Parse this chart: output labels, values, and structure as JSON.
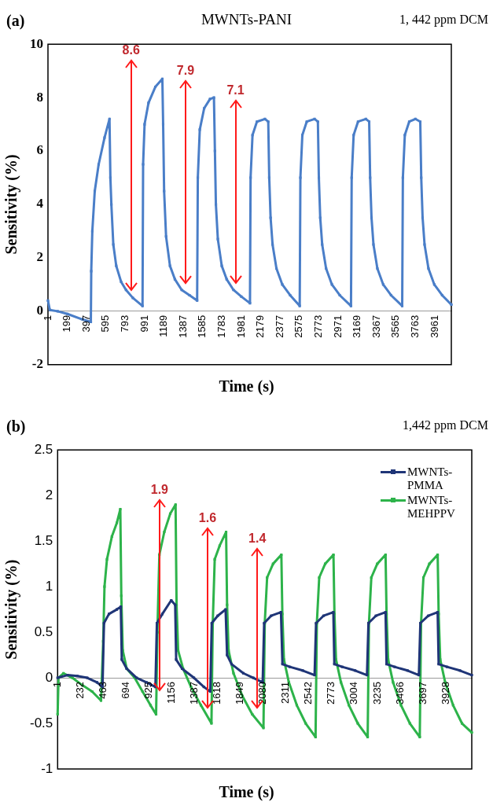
{
  "chart_data": [
    {
      "type": "line",
      "title": "MWNTs-PANI",
      "subtitle": "1, 442 ppm DCM",
      "xlabel": "Time (s)",
      "ylabel": "Sensitivity (%)",
      "xlim": [
        1,
        4130
      ],
      "xticks": [
        1,
        199,
        397,
        595,
        793,
        991,
        1189,
        1387,
        1585,
        1783,
        1981,
        2179,
        2377,
        2575,
        2773,
        2971,
        3169,
        3367,
        3565,
        3763,
        3961
      ],
      "ylim": [
        -2,
        10
      ],
      "yticks": [
        -2,
        0,
        2,
        4,
        6,
        8,
        10
      ],
      "grid": false,
      "legend": false,
      "marker": "square",
      "annotations": [
        "(a)",
        "8.6",
        "7.9",
        "7.1"
      ],
      "series": [
        {
          "color": "#4a7ec8",
          "x": [
            1,
            20,
            100,
            200,
            350,
            440,
            444,
            455,
            480,
            520,
            580,
            631,
            640,
            650,
            670,
            700,
            750,
            800,
            870,
            969,
            975,
            990,
            1030,
            1100,
            1172,
            1180,
            1190,
            1210,
            1250,
            1300,
            1370,
            1450,
            1528,
            1535,
            1555,
            1600,
            1660,
            1700,
            1710,
            1720,
            1740,
            1780,
            1830,
            1900,
            1980,
            2069,
            2075,
            2095,
            2140,
            2222,
            2256,
            2266,
            2280,
            2300,
            2340,
            2400,
            2480,
            2578,
            2585,
            2605,
            2650,
            2730,
            2764,
            2774,
            2788,
            2808,
            2848,
            2908,
            2988,
            3103,
            3110,
            3130,
            3175,
            3255,
            3289,
            3299,
            3313,
            3333,
            3373,
            3433,
            3513,
            3627,
            3634,
            3654,
            3699,
            3762,
            3812,
            3822,
            3836,
            3856,
            3896,
            3956,
            4036,
            4130
          ],
          "values": [
            0.4,
            0.05,
            0,
            -0.1,
            -0.3,
            -0.4,
            1.5,
            3,
            4.5,
            5.5,
            6.5,
            7.2,
            5,
            4,
            2.5,
            1.7,
            1.1,
            0.8,
            0.5,
            0.2,
            5.5,
            7,
            7.8,
            8.4,
            8.7,
            7,
            4.5,
            2.8,
            1.7,
            1.2,
            0.8,
            0.6,
            0.4,
            5,
            6.8,
            7.6,
            7.95,
            8,
            6,
            4,
            2.7,
            1.7,
            1.2,
            0.8,
            0.55,
            0.3,
            5,
            6.6,
            7.1,
            7.2,
            7.1,
            5,
            3.5,
            2.5,
            1.6,
            1,
            0.6,
            0.2,
            5,
            6.6,
            7.1,
            7.2,
            7.1,
            5,
            3.5,
            2.5,
            1.6,
            1,
            0.6,
            0.2,
            5,
            6.6,
            7.1,
            7.2,
            7.1,
            5,
            3.5,
            2.5,
            1.6,
            1,
            0.6,
            0.2,
            5,
            6.6,
            7.1,
            7.2,
            7.1,
            5,
            3.5,
            2.5,
            1.6,
            1,
            0.6,
            0.25
          ]
        }
      ]
    },
    {
      "type": "line",
      "subtitle": "1,442 ppm DCM",
      "xlabel": "Time (s)",
      "ylabel": "Sensitivity (%)",
      "xlim": [
        1,
        4190
      ],
      "xticks": [
        1,
        232,
        463,
        694,
        925,
        1156,
        1387,
        1618,
        1849,
        2080,
        2311,
        2542,
        2773,
        3004,
        3235,
        3466,
        3697,
        3928
      ],
      "ylim": [
        -1,
        2.5
      ],
      "yticks": [
        -1,
        -0.5,
        0,
        0.5,
        1,
        1.5,
        2,
        2.5
      ],
      "grid": false,
      "legend": "top right",
      "marker": "square",
      "annotations": [
        "(b)",
        "1.9",
        "1.6",
        "1.4"
      ],
      "series": [
        {
          "name": "MWNTs-PMMA",
          "color": "#1f3577",
          "x": [
            1,
            100,
            200,
            300,
            400,
            455,
            470,
            520,
            600,
            640,
            650,
            700,
            800,
            900,
            990,
            1005,
            1060,
            1150,
            1190,
            1200,
            1260,
            1380,
            1480,
            1545,
            1560,
            1620,
            1700,
            1715,
            1760,
            1880,
            1980,
            2075,
            2090,
            2160,
            2260,
            2275,
            2350,
            2480,
            2600,
            2615,
            2690,
            2790,
            2800,
            2880,
            3010,
            3130,
            3145,
            3220,
            3318,
            3328,
            3410,
            3540,
            3655,
            3670,
            3750,
            3845,
            3855,
            3940,
            4070,
            4190
          ],
          "values": [
            0,
            0.03,
            0.02,
            0,
            -0.05,
            -0.1,
            0.6,
            0.7,
            0.75,
            0.78,
            0.2,
            0.1,
            0,
            -0.05,
            -0.1,
            0.6,
            0.7,
            0.85,
            0.8,
            0.2,
            0.1,
            0,
            -0.1,
            -0.15,
            0.6,
            0.68,
            0.75,
            0.25,
            0.15,
            0.05,
            0,
            -0.05,
            0.6,
            0.68,
            0.72,
            0.15,
            0.12,
            0.08,
            0.03,
            0.6,
            0.68,
            0.72,
            0.15,
            0.12,
            0.08,
            0.03,
            0.6,
            0.68,
            0.72,
            0.15,
            0.12,
            0.08,
            0.03,
            0.6,
            0.68,
            0.72,
            0.15,
            0.12,
            0.08,
            0.03
          ]
        },
        {
          "name": "MWNTs-MEHPPV",
          "color": "#2db34a",
          "x": [
            1,
            10,
            60,
            150,
            250,
            350,
            440,
            462,
            475,
            500,
            550,
            600,
            635,
            645,
            660,
            700,
            780,
            860,
            940,
            997,
            1010,
            1030,
            1080,
            1140,
            1194,
            1204,
            1220,
            1270,
            1350,
            1450,
            1557,
            1570,
            1590,
            1640,
            1705,
            1715,
            1730,
            1780,
            1870,
            1970,
            2083,
            2096,
            2120,
            2180,
            2264,
            2274,
            2290,
            2340,
            2420,
            2510,
            2610,
            2623,
            2647,
            2707,
            2791,
            2801,
            2817,
            2867,
            2947,
            3037,
            3137,
            3150,
            3174,
            3234,
            3318,
            3328,
            3344,
            3394,
            3474,
            3564,
            3664,
            3677,
            3701,
            3761,
            3845,
            3855,
            3871,
            3921,
            4001,
            4091,
            4190
          ],
          "values": [
            -0.4,
            0,
            0.05,
            0,
            -0.08,
            -0.15,
            -0.25,
            0.4,
            1,
            1.3,
            1.55,
            1.7,
            1.85,
            0.9,
            0.3,
            0.1,
            0,
            -0.15,
            -0.3,
            -0.4,
            0.5,
            1.35,
            1.6,
            1.8,
            1.9,
            0.8,
            0.3,
            0.1,
            -0.1,
            -0.3,
            -0.5,
            0.6,
            1.3,
            1.45,
            1.6,
            0.8,
            0.3,
            0.05,
            -0.2,
            -0.4,
            -0.55,
            0.6,
            1.1,
            1.25,
            1.35,
            0.7,
            0.2,
            -0.05,
            -0.3,
            -0.5,
            -0.65,
            0.6,
            1.1,
            1.25,
            1.35,
            0.7,
            0.2,
            -0.05,
            -0.3,
            -0.5,
            -0.65,
            0.6,
            1.1,
            1.25,
            1.35,
            0.7,
            0.2,
            -0.05,
            -0.3,
            -0.5,
            -0.65,
            0.6,
            1.1,
            1.25,
            1.35,
            0.7,
            0.2,
            -0.05,
            -0.3,
            -0.5,
            -0.6
          ]
        }
      ]
    }
  ]
}
